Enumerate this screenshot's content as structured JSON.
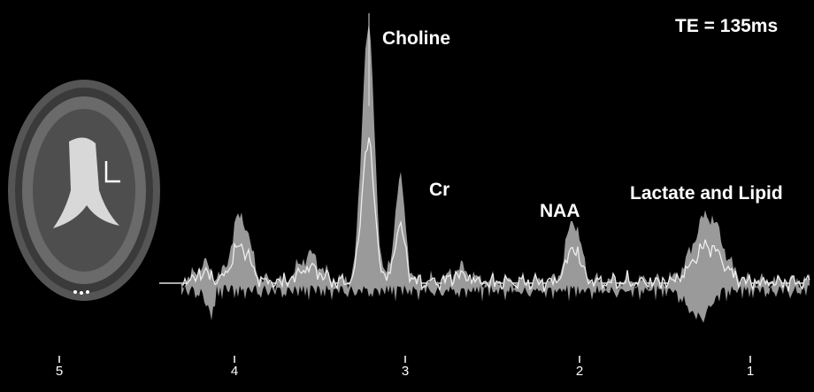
{
  "header": {
    "title": "TE = 135ms"
  },
  "peaks": [
    {
      "label": "Choline"
    },
    {
      "label": "Cr"
    },
    {
      "label": "NAA"
    },
    {
      "label": "Lactate and Lipid"
    }
  ],
  "axis": {
    "ticks": [
      "5",
      "4",
      "3",
      "2",
      "1"
    ]
  }
}
